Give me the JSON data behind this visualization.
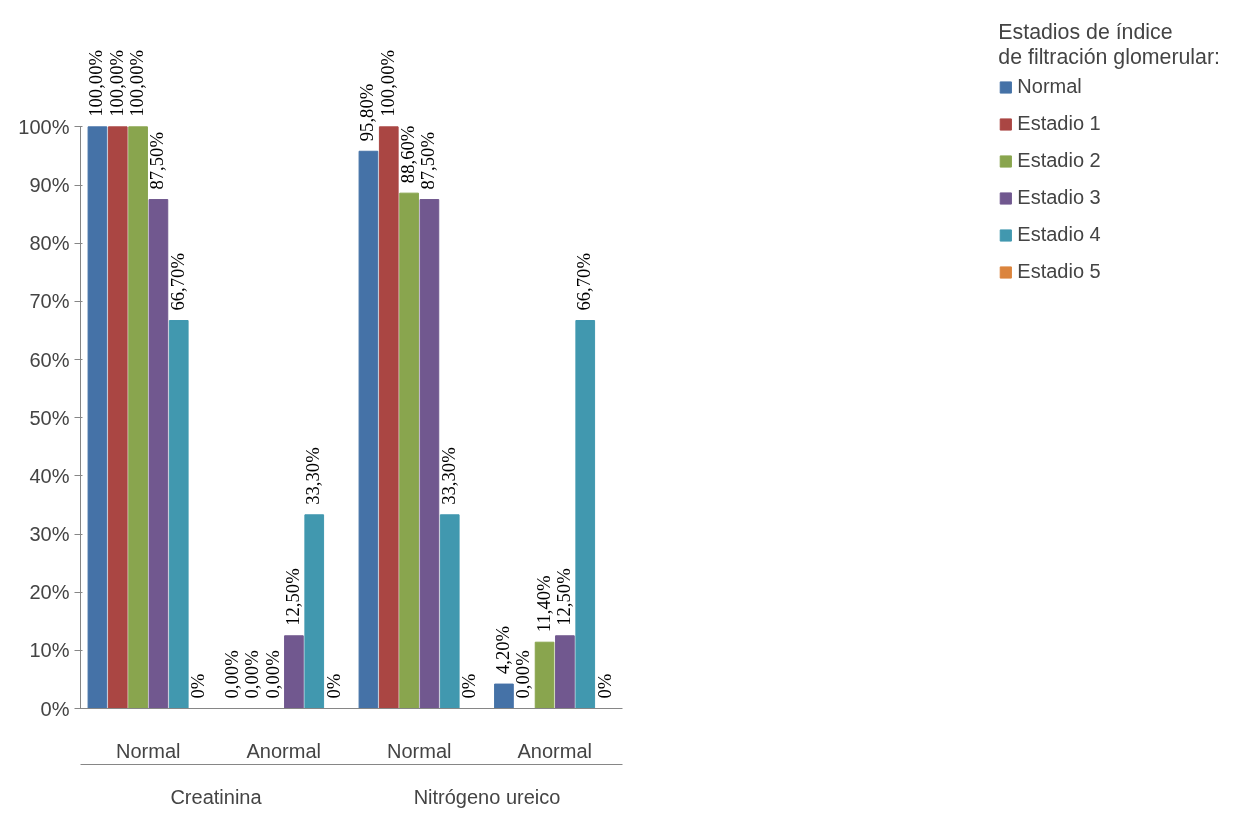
{
  "chart_data": {
    "type": "bar",
    "categories": [
      "Normal",
      "Anormal",
      "Normal",
      "Anormal"
    ],
    "annotations": [
      "Creatinina",
      "Nitrógeno ureico"
    ],
    "legend_title": "Estadios de índice de filtración glomerular:",
    "series": [
      {
        "name": "Normal",
        "color": "#4572a7",
        "values": [
          100,
          0,
          95.8,
          4.2
        ],
        "value_labels": [
          "100,00%",
          "0,00%",
          "95,80%",
          "4,20%"
        ]
      },
      {
        "name": "Estadio 1",
        "color": "#aa4643",
        "values": [
          100,
          0,
          100,
          0
        ],
        "value_labels": [
          "100,00%",
          "0,00%",
          "100,00%",
          "0,00%"
        ]
      },
      {
        "name": "Estadio 2",
        "color": "#89a54e",
        "values": [
          100,
          0,
          88.6,
          11.4
        ],
        "value_labels": [
          "100,00%",
          "0,00%",
          "88,60%",
          "11,40%"
        ]
      },
      {
        "name": "Estadio 3",
        "color": "#71588f",
        "values": [
          87.5,
          12.5,
          87.5,
          12.5
        ],
        "value_labels": [
          "87,50%",
          "12,50%",
          "87,50%",
          "12,50%"
        ]
      },
      {
        "name": "Estadio 4",
        "color": "#4198af",
        "values": [
          66.7,
          33.3,
          33.3,
          66.7
        ],
        "value_labels": [
          "66,70%",
          "33,30%",
          "33,30%",
          "66,70%"
        ]
      },
      {
        "name": "Estadio 5",
        "color": "#db843d",
        "values": [
          0,
          0,
          0,
          0
        ],
        "value_labels": [
          "0%",
          "0%",
          "0%",
          "0%"
        ]
      }
    ],
    "ylim": [
      0,
      100
    ],
    "yticks": [
      {
        "value": 0,
        "label": "0%"
      },
      {
        "value": 10,
        "label": "10%"
      },
      {
        "value": 20,
        "label": "20%"
      },
      {
        "value": 30,
        "label": "30%"
      },
      {
        "value": 40,
        "label": "40%"
      },
      {
        "value": 50,
        "label": "50%"
      },
      {
        "value": 60,
        "label": "60%"
      },
      {
        "value": 70,
        "label": "70%"
      },
      {
        "value": 80,
        "label": "80%"
      },
      {
        "value": 90,
        "label": "90%"
      },
      {
        "value": 100,
        "label": "100%"
      }
    ],
    "grid": false,
    "legend": "right"
  }
}
